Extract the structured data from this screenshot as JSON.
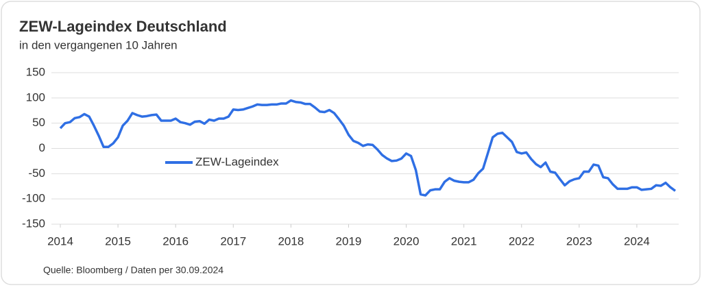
{
  "chart_data": {
    "type": "line",
    "title": "ZEW-Lageindex Deutschland",
    "subtitle": "in den vergangenen 10 Jahren",
    "source": "Quelle: Bloomberg / Daten per 30.09.2024",
    "x": [
      2014.0,
      2014.083,
      2014.167,
      2014.25,
      2014.333,
      2014.417,
      2014.5,
      2014.583,
      2014.667,
      2014.75,
      2014.833,
      2014.917,
      2015.0,
      2015.083,
      2015.167,
      2015.25,
      2015.333,
      2015.417,
      2015.5,
      2015.583,
      2015.667,
      2015.75,
      2015.833,
      2015.917,
      2016.0,
      2016.083,
      2016.167,
      2016.25,
      2016.333,
      2016.417,
      2016.5,
      2016.583,
      2016.667,
      2016.75,
      2016.833,
      2016.917,
      2017.0,
      2017.083,
      2017.167,
      2017.25,
      2017.333,
      2017.417,
      2017.5,
      2017.583,
      2017.667,
      2017.75,
      2017.833,
      2017.917,
      2018.0,
      2018.083,
      2018.167,
      2018.25,
      2018.333,
      2018.417,
      2018.5,
      2018.583,
      2018.667,
      2018.75,
      2018.833,
      2018.917,
      2019.0,
      2019.083,
      2019.167,
      2019.25,
      2019.333,
      2019.417,
      2019.5,
      2019.583,
      2019.667,
      2019.75,
      2019.833,
      2019.917,
      2020.0,
      2020.083,
      2020.167,
      2020.25,
      2020.333,
      2020.417,
      2020.5,
      2020.583,
      2020.667,
      2020.75,
      2020.833,
      2020.917,
      2021.0,
      2021.083,
      2021.167,
      2021.25,
      2021.333,
      2021.417,
      2021.5,
      2021.583,
      2021.667,
      2021.75,
      2021.833,
      2021.917,
      2022.0,
      2022.083,
      2022.167,
      2022.25,
      2022.333,
      2022.417,
      2022.5,
      2022.583,
      2022.667,
      2022.75,
      2022.833,
      2022.917,
      2023.0,
      2023.083,
      2023.167,
      2023.25,
      2023.333,
      2023.417,
      2023.5,
      2023.583,
      2023.667,
      2023.75,
      2023.833,
      2023.917,
      2024.0,
      2024.083,
      2024.167,
      2024.25,
      2024.333,
      2024.417,
      2024.5,
      2024.583,
      2024.667
    ],
    "series": [
      {
        "name": "ZEW-Lageindex",
        "color": "#2f6fe4",
        "values": [
          40,
          50,
          52,
          60,
          62,
          68,
          63,
          45,
          25,
          3,
          3,
          10,
          22,
          45,
          55,
          70,
          66,
          63,
          64,
          66,
          67,
          55,
          55,
          55,
          59,
          52,
          50,
          47,
          53,
          54,
          49,
          57,
          55,
          59,
          59,
          63,
          77,
          76,
          77,
          80,
          83,
          87,
          86,
          86,
          87,
          87,
          89,
          89,
          95,
          92,
          91,
          88,
          88,
          81,
          73,
          72,
          76,
          70,
          58,
          45,
          27,
          15,
          11,
          5,
          8,
          7,
          -2,
          -13,
          -20,
          -25,
          -24,
          -20,
          -10,
          -15,
          -43,
          -91,
          -93,
          -83,
          -81,
          -81,
          -66,
          -59,
          -64,
          -66,
          -67,
          -67,
          -62,
          -49,
          -40,
          -9,
          22,
          29,
          31,
          22,
          13,
          -7,
          -10,
          -8,
          -21,
          -31,
          -37,
          -28,
          -46,
          -48,
          -61,
          -73,
          -65,
          -61,
          -59,
          -46,
          -46,
          -32,
          -34,
          -57,
          -59,
          -71,
          -80,
          -80,
          -80,
          -77,
          -77,
          -82,
          -81,
          -80,
          -73,
          -74,
          -68,
          -77,
          -84
        ]
      }
    ],
    "xlim": [
      2014,
      2024.75
    ],
    "xticks": [
      2014,
      2015,
      2016,
      2017,
      2018,
      2019,
      2020,
      2021,
      2022,
      2023,
      2024
    ],
    "ylim": [
      -150,
      150
    ],
    "yticks": [
      -150,
      -100,
      -50,
      0,
      50,
      100,
      150
    ],
    "grid": true,
    "legend": "center-left"
  }
}
